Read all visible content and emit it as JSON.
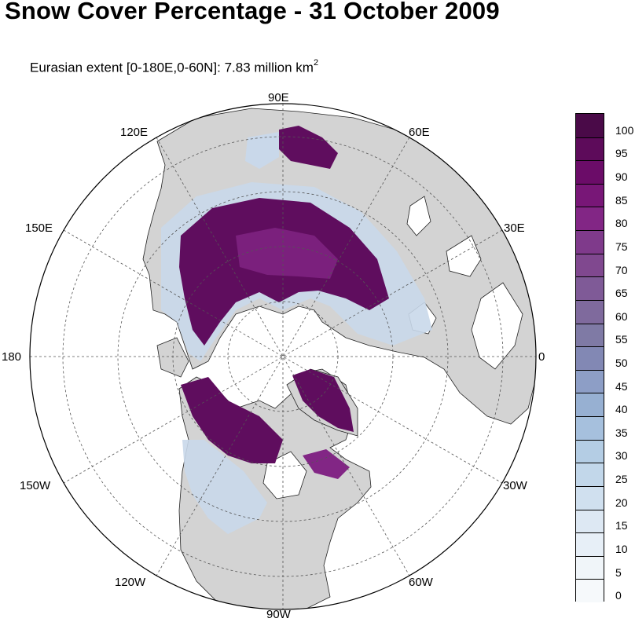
{
  "title": "Snow Cover Percentage - 31 October 2009",
  "subtitle_text": "Eurasian extent [0-180E,0-60N]:  7.83 million km",
  "subtitle_sup": "2",
  "longitude_labels": {
    "e90": "90E",
    "e60": "60E",
    "e30": "30E",
    "e0": "0",
    "w30": "30W",
    "w60": "60W",
    "w90": "90W",
    "w120": "120W",
    "w150": "150W",
    "w180": "180",
    "e150": "150E",
    "e120": "120E"
  },
  "colorbar": {
    "labels": [
      "100",
      "95",
      "90",
      "85",
      "80",
      "75",
      "70",
      "65",
      "60",
      "55",
      "50",
      "45",
      "40",
      "35",
      "30",
      "25",
      "20",
      "15",
      "10",
      "5",
      "0"
    ],
    "colors_top_to_bottom": [
      "#4a0a48",
      "#5d0b5a",
      "#6b0c68",
      "#781777",
      "#822685",
      "#7f3a8b",
      "#80488f",
      "#7f5a97",
      "#7f6a9d",
      "#7f7aa5",
      "#8288b4",
      "#8d9ec6",
      "#97b0d2",
      "#a6c0dd",
      "#b4cde4",
      "#c2d7ea",
      "#d0e0ef",
      "#dde8f3",
      "#e7eff7",
      "#f0f5f9",
      "#f6f9fb"
    ]
  },
  "map": {
    "land_color": "#d3d3d3",
    "ocean_color": "#ffffff",
    "snow_high_color": "#5f0d5e",
    "snow_low_color": "#c9d8ea"
  }
}
